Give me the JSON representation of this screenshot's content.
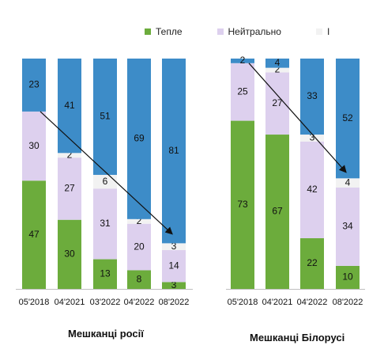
{
  "colors": {
    "warm": "#6cac3c",
    "neutral": "#ddd0ee",
    "other": "#f2f2f2",
    "cold": "#3d8cc8",
    "arrow": "#111111"
  },
  "legend": [
    {
      "label": "Тепле",
      "color": "#6cac3c"
    },
    {
      "label": "Нейтрально",
      "color": "#ddd0ee"
    },
    {
      "label": "І",
      "color": "#f2f2f2"
    }
  ],
  "chart_data": {
    "type": "bar",
    "stacked": true,
    "groups": [
      {
        "title": "Мешканці росії",
        "categories": [
          "05'2018",
          "04'2021",
          "03'2022",
          "04'2022",
          "08'2022"
        ],
        "series": [
          {
            "name": "Тепле",
            "values": [
              47,
              30,
              13,
              8,
              3
            ]
          },
          {
            "name": "Нейтрально",
            "values": [
              30,
              27,
              31,
              20,
              14
            ]
          },
          {
            "name": "",
            "values": [
              0,
              2,
              6,
              2,
              3
            ]
          },
          {
            "name": "",
            "values": [
              23,
              41,
              51,
              69,
              81
            ]
          }
        ]
      },
      {
        "title": "Мешканці Білорусі",
        "categories": [
          "05'2018",
          "04'2021",
          "04'2022",
          "08'2022"
        ],
        "series": [
          {
            "name": "Тепле",
            "values": [
              73,
              67,
              22,
              10
            ]
          },
          {
            "name": "Нейтрально",
            "values": [
              25,
              27,
              42,
              34
            ]
          },
          {
            "name": "",
            "values": [
              0,
              2,
              3,
              4
            ]
          },
          {
            "name": "",
            "values": [
              2,
              4,
              33,
              52
            ]
          }
        ]
      }
    ],
    "ylim": [
      0,
      100
    ],
    "grid": false
  }
}
